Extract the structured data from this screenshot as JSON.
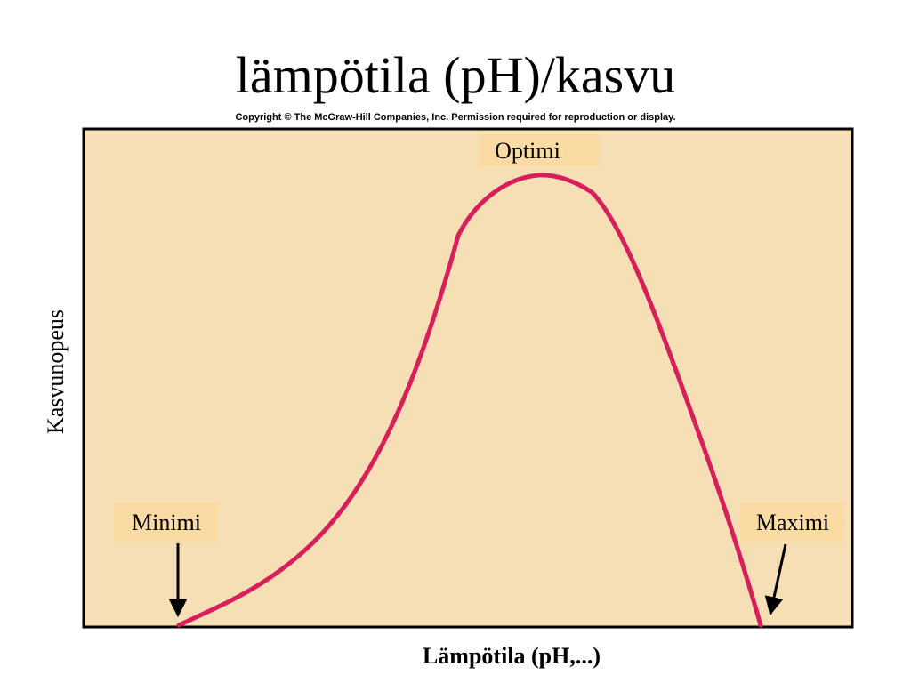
{
  "title": "lämpötila (pH)/kasvu",
  "copyright": "Copyright © The McGraw-Hill Companies, Inc. Permission required for reproduction or display.",
  "axes": {
    "y_label": "Kasvunopeus",
    "x_label": "Lämpötila (pH,...)"
  },
  "callouts": {
    "optimum": "Optimi",
    "minimum": "Minimi",
    "maximum": "Maximi"
  },
  "colors": {
    "panel_fill": "#f7dfb5",
    "label_fill": "#fbdba4",
    "curve": "#d81e5b",
    "frame": "#000000"
  }
}
